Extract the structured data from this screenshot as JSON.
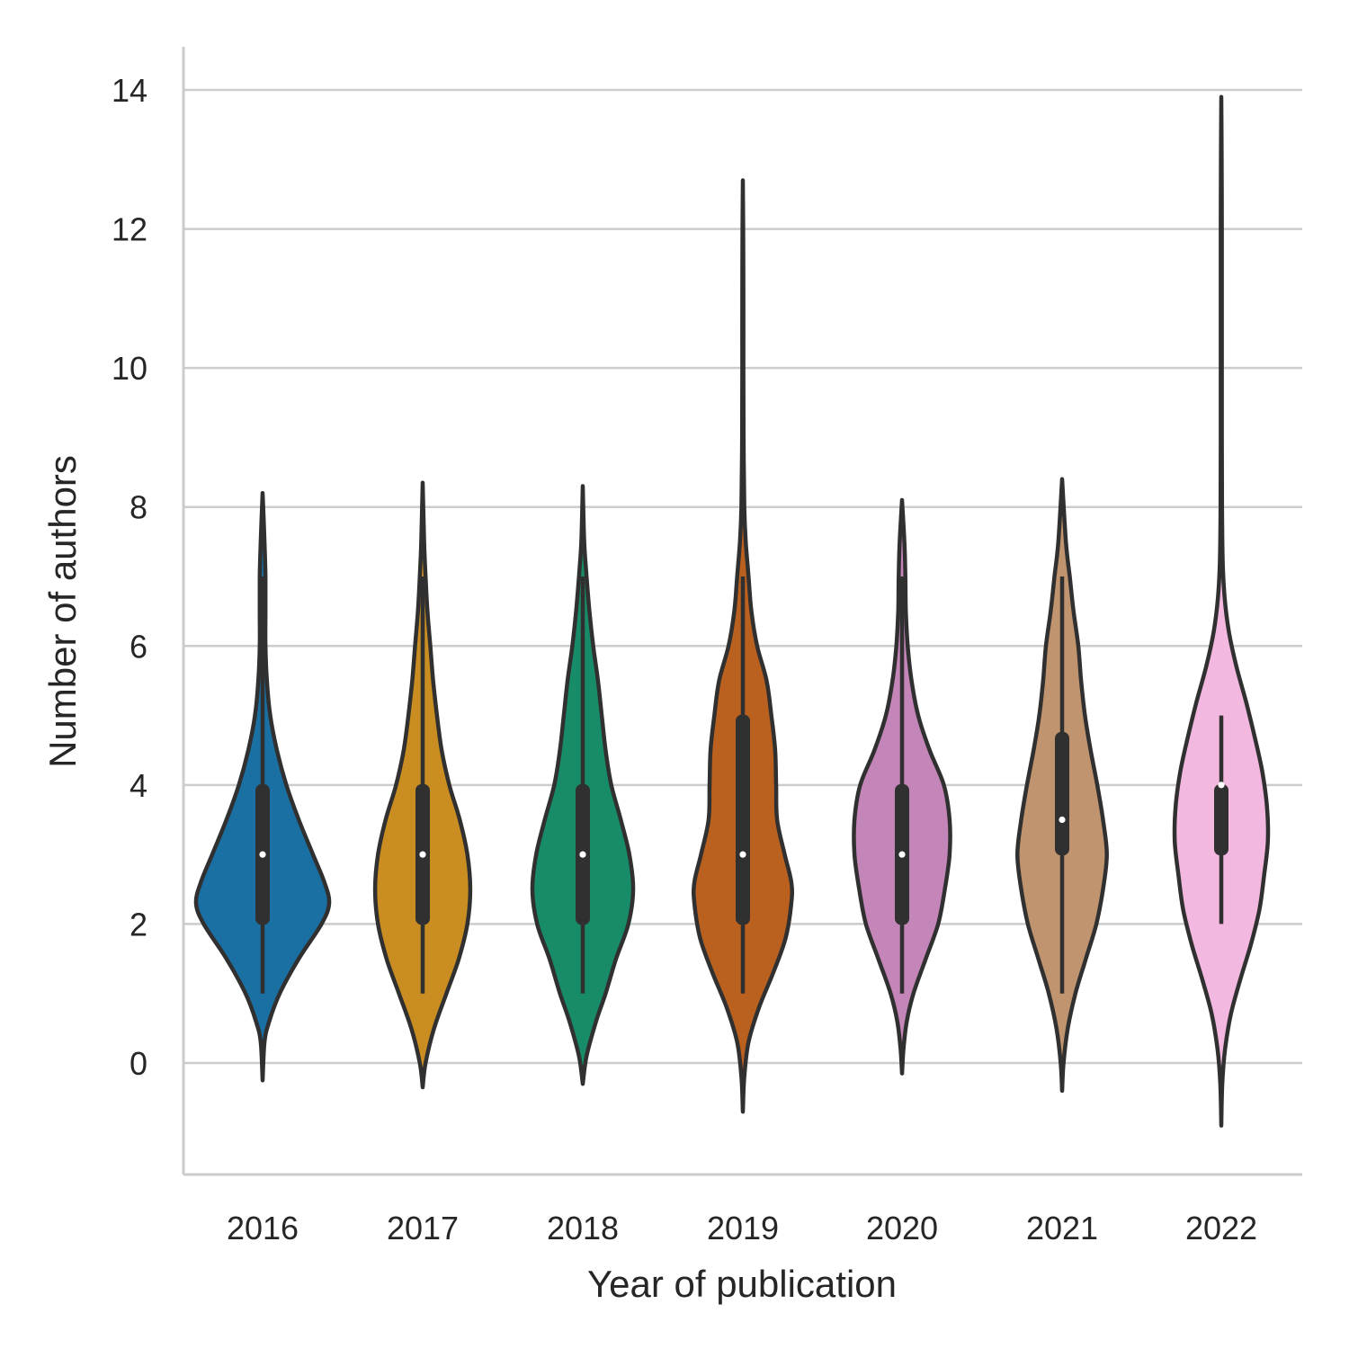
{
  "chart_data": {
    "type": "violin",
    "title": "",
    "xlabel": "Year of publication",
    "ylabel": "Number of authors",
    "ylim": [
      -1.6,
      14.6
    ],
    "yticks": [
      0,
      2,
      4,
      6,
      8,
      10,
      12,
      14
    ],
    "grid": "horizontal",
    "categories": [
      "2016",
      "2017",
      "2018",
      "2019",
      "2020",
      "2021",
      "2022"
    ],
    "colors": [
      "#1a70a2",
      "#c98d22",
      "#188c69",
      "#bb611f",
      "#c485b8",
      "#bf946e",
      "#f2b8df"
    ],
    "line_color": "#303030",
    "series": [
      {
        "name": "2016",
        "min": 1,
        "q1": 2,
        "median": 3,
        "q3": 4,
        "max": 7,
        "kde_min": -0.25,
        "kde_max": 8.2,
        "density": [
          [
            -0.25,
            0.0
          ],
          [
            0.3,
            0.02
          ],
          [
            0.6,
            0.07
          ],
          [
            1.0,
            0.18
          ],
          [
            1.5,
            0.38
          ],
          [
            2.0,
            0.62
          ],
          [
            2.3,
            0.7
          ],
          [
            2.6,
            0.65
          ],
          [
            3.0,
            0.53
          ],
          [
            3.5,
            0.38
          ],
          [
            4.0,
            0.25
          ],
          [
            4.5,
            0.15
          ],
          [
            5.0,
            0.08
          ],
          [
            5.5,
            0.045
          ],
          [
            6.0,
            0.03
          ],
          [
            6.5,
            0.03
          ],
          [
            7.0,
            0.03
          ],
          [
            7.5,
            0.02
          ],
          [
            8.2,
            0.0
          ]
        ]
      },
      {
        "name": "2017",
        "min": 1,
        "q1": 2,
        "median": 3,
        "q3": 4,
        "max": 7,
        "kde_min": -0.35,
        "kde_max": 8.35,
        "density": [
          [
            -0.35,
            0.0
          ],
          [
            0.0,
            0.03
          ],
          [
            0.5,
            0.12
          ],
          [
            1.0,
            0.25
          ],
          [
            1.5,
            0.38
          ],
          [
            2.0,
            0.47
          ],
          [
            2.5,
            0.5
          ],
          [
            3.0,
            0.47
          ],
          [
            3.5,
            0.39
          ],
          [
            4.0,
            0.28
          ],
          [
            4.5,
            0.2
          ],
          [
            5.0,
            0.15
          ],
          [
            5.5,
            0.11
          ],
          [
            6.0,
            0.08
          ],
          [
            6.5,
            0.05
          ],
          [
            7.0,
            0.03
          ],
          [
            7.5,
            0.015
          ],
          [
            8.35,
            0.0
          ]
        ]
      },
      {
        "name": "2018",
        "min": 1,
        "q1": 2,
        "median": 3,
        "q3": 4,
        "max": 7,
        "kde_min": -0.3,
        "kde_max": 8.3,
        "density": [
          [
            -0.3,
            0.0
          ],
          [
            0.1,
            0.04
          ],
          [
            0.6,
            0.14
          ],
          [
            1.0,
            0.24
          ],
          [
            1.5,
            0.35
          ],
          [
            2.0,
            0.48
          ],
          [
            2.5,
            0.53
          ],
          [
            3.0,
            0.49
          ],
          [
            3.5,
            0.4
          ],
          [
            4.0,
            0.3
          ],
          [
            4.5,
            0.24
          ],
          [
            5.0,
            0.2
          ],
          [
            5.5,
            0.16
          ],
          [
            6.0,
            0.11
          ],
          [
            6.5,
            0.07
          ],
          [
            7.0,
            0.04
          ],
          [
            7.5,
            0.015
          ],
          [
            8.3,
            0.0
          ]
        ]
      },
      {
        "name": "2019",
        "min": 1,
        "q1": 2,
        "median": 3,
        "q3": 5,
        "max": 7,
        "kde_min": -0.7,
        "kde_max": 12.7,
        "density": [
          [
            -0.7,
            0.0
          ],
          [
            -0.2,
            0.015
          ],
          [
            0.3,
            0.06
          ],
          [
            0.8,
            0.17
          ],
          [
            1.3,
            0.32
          ],
          [
            1.8,
            0.45
          ],
          [
            2.3,
            0.51
          ],
          [
            2.6,
            0.51
          ],
          [
            3.0,
            0.44
          ],
          [
            3.5,
            0.36
          ],
          [
            4.0,
            0.35
          ],
          [
            4.5,
            0.34
          ],
          [
            5.0,
            0.3
          ],
          [
            5.5,
            0.25
          ],
          [
            6.0,
            0.15
          ],
          [
            6.5,
            0.09
          ],
          [
            7.0,
            0.06
          ],
          [
            7.5,
            0.03
          ],
          [
            8.0,
            0.015
          ],
          [
            9.0,
            0.008
          ],
          [
            10.0,
            0.006
          ],
          [
            11.0,
            0.006
          ],
          [
            12.0,
            0.004
          ],
          [
            12.7,
            0.0
          ]
        ]
      },
      {
        "name": "2020",
        "min": 1,
        "q1": 2,
        "median": 3,
        "q3": 4,
        "max": 7,
        "kde_min": -0.15,
        "kde_max": 8.1,
        "density": [
          [
            -0.15,
            0.0
          ],
          [
            0.2,
            0.015
          ],
          [
            0.6,
            0.05
          ],
          [
            1.0,
            0.12
          ],
          [
            1.5,
            0.25
          ],
          [
            2.0,
            0.38
          ],
          [
            2.5,
            0.45
          ],
          [
            3.0,
            0.5
          ],
          [
            3.5,
            0.5
          ],
          [
            4.0,
            0.44
          ],
          [
            4.5,
            0.29
          ],
          [
            5.0,
            0.17
          ],
          [
            5.5,
            0.1
          ],
          [
            6.0,
            0.06
          ],
          [
            6.5,
            0.04
          ],
          [
            7.0,
            0.035
          ],
          [
            7.5,
            0.025
          ],
          [
            8.1,
            0.0
          ]
        ]
      },
      {
        "name": "2021",
        "min": 1,
        "q1": 3,
        "median": 3.5,
        "q3": 4.75,
        "max": 7,
        "kde_min": -0.4,
        "kde_max": 8.4,
        "density": [
          [
            -0.4,
            0.0
          ],
          [
            0.0,
            0.015
          ],
          [
            0.5,
            0.06
          ],
          [
            1.0,
            0.14
          ],
          [
            1.5,
            0.25
          ],
          [
            2.0,
            0.36
          ],
          [
            2.5,
            0.43
          ],
          [
            3.0,
            0.47
          ],
          [
            3.5,
            0.43
          ],
          [
            4.0,
            0.37
          ],
          [
            4.5,
            0.3
          ],
          [
            5.0,
            0.24
          ],
          [
            5.5,
            0.2
          ],
          [
            6.0,
            0.17
          ],
          [
            6.5,
            0.12
          ],
          [
            7.0,
            0.08
          ],
          [
            7.5,
            0.04
          ],
          [
            8.4,
            0.0
          ]
        ]
      },
      {
        "name": "2022",
        "min": 2,
        "q1": 3,
        "median": 4,
        "q3": 4,
        "max": 5,
        "kde_min": -0.9,
        "kde_max": 13.9,
        "density": [
          [
            -0.9,
            0.0
          ],
          [
            -0.3,
            0.01
          ],
          [
            0.2,
            0.04
          ],
          [
            0.7,
            0.1
          ],
          [
            1.2,
            0.2
          ],
          [
            1.7,
            0.31
          ],
          [
            2.2,
            0.4
          ],
          [
            2.7,
            0.45
          ],
          [
            3.2,
            0.49
          ],
          [
            3.7,
            0.48
          ],
          [
            4.2,
            0.43
          ],
          [
            4.7,
            0.35
          ],
          [
            5.2,
            0.26
          ],
          [
            5.7,
            0.16
          ],
          [
            6.2,
            0.08
          ],
          [
            6.7,
            0.035
          ],
          [
            7.2,
            0.015
          ],
          [
            8.0,
            0.008
          ],
          [
            9.0,
            0.006
          ],
          [
            10.0,
            0.006
          ],
          [
            11.0,
            0.006
          ],
          [
            12.0,
            0.006
          ],
          [
            13.0,
            0.004
          ],
          [
            13.9,
            0.0
          ]
        ]
      }
    ]
  }
}
